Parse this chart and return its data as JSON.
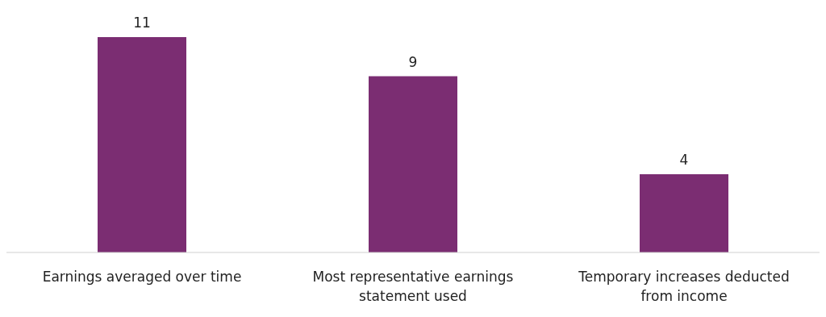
{
  "chart_data": {
    "type": "bar",
    "categories": [
      "Earnings averaged over time",
      "Most representative earnings statement used",
      "Temporary increases deducted from income"
    ],
    "values": [
      11,
      9,
      4
    ],
    "color": "#7b2d72",
    "relative": false,
    "data_labels": true
  }
}
